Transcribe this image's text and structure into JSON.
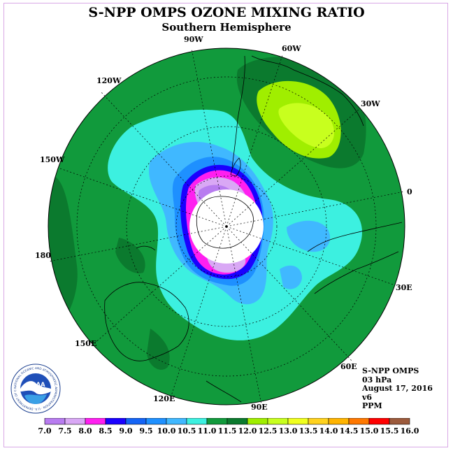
{
  "header": {
    "title": "S-NPP OMPS OZONE MIXING RATIO",
    "subtitle": "Southern Hemisphere"
  },
  "map": {
    "projection": "polar stereographic, south pole centered",
    "longitude_labels": [
      "90W",
      "60W",
      "120W",
      "30W",
      "150W",
      "0",
      "180",
      "30E",
      "150E",
      "60E",
      "120E",
      "90E"
    ]
  },
  "info": {
    "instrument": "S-NPP OMPS",
    "level": "03 hPa",
    "date": "August 17, 2016",
    "version": "v6",
    "units": "PPM"
  },
  "logo": {
    "text": "NOAA",
    "ring_text": "NATIONAL OCEANIC AND ATMOSPHERIC ADMINISTRATION · U.S. DEPARTMENT OF COMMERCE"
  },
  "colorbar": {
    "ticks": [
      "7.0",
      "7.5",
      "8.0",
      "8.5",
      "9.0",
      "9.5",
      "10.0",
      "10.5",
      "11.0",
      "11.5",
      "12.0",
      "12.5",
      "13.0",
      "13.5",
      "14.0",
      "14.5",
      "15.0",
      "15.5",
      "16.0"
    ],
    "colors": [
      "#b87cf0",
      "#d9a8f5",
      "#ff1ff0",
      "#1a00ff",
      "#1464f5",
      "#1e90ff",
      "#40b8ff",
      "#3cf0e0",
      "#119a3c",
      "#0b7a2e",
      "#a0ee00",
      "#c8ff1e",
      "#f0ff1e",
      "#ffd21e",
      "#ffb400",
      "#ff7800",
      "#ff0000",
      "#9c5a3c"
    ]
  },
  "colors": {
    "frame": "#d9a8e6",
    "level_11_5": "#119a3c",
    "level_11_0": "#3cf0e0",
    "level_10_5": "#40b8ff",
    "level_12_0": "#0b7a2e",
    "level_12_5": "#a0ee00",
    "level_13_0": "#c8ff1e"
  }
}
